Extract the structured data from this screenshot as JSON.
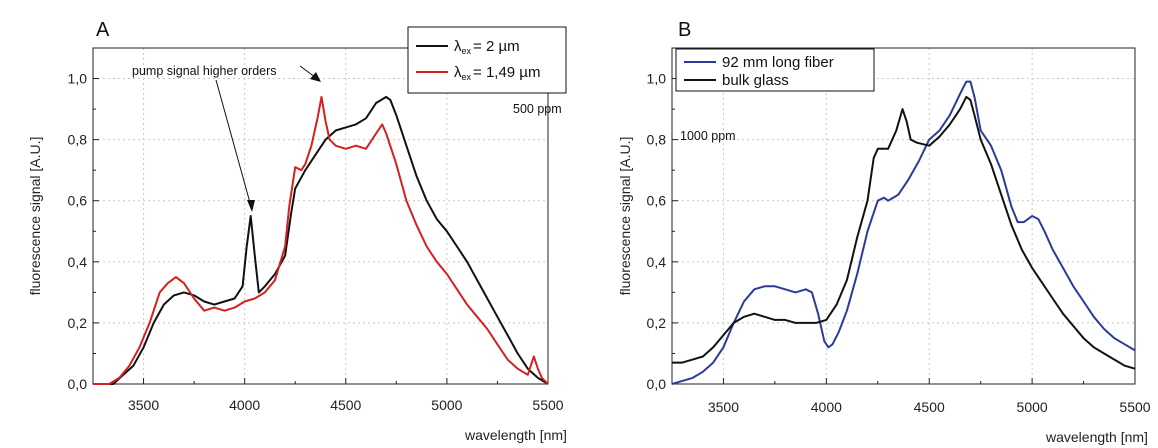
{
  "chart_data": [
    {
      "panel": "A",
      "type": "line",
      "xlabel": "wavelength [nm]",
      "ylabel": "fluorescence signal [A.U.]",
      "xlim": [
        3250,
        5500
      ],
      "ylim": [
        0,
        1.1
      ],
      "xticks": [
        3500,
        4000,
        4500,
        5000,
        5500
      ],
      "xtick_labels": [
        "3500",
        "4000",
        "4500",
        "5000",
        "5500"
      ],
      "yticks": [
        0,
        0.2,
        0.4,
        0.6,
        0.8,
        1.0
      ],
      "ytick_labels": [
        "0,0",
        "0,2",
        "0,4",
        "0,6",
        "0,8",
        "1,0"
      ],
      "grid": true,
      "legend_position": "top-right",
      "legend": [
        {
          "base": "λ",
          "sub": "ex",
          "rest": "= 2 µm",
          "color": "#111111"
        },
        {
          "base": "λ",
          "sub": "ex",
          "rest": "= 1,49 µm",
          "color": "#d42020"
        }
      ],
      "annotations": {
        "arrow_text": "pump signal higher orders",
        "concentration": "500 ppm"
      },
      "series": [
        {
          "color": "#111111",
          "x": [
            3250,
            3350,
            3400,
            3450,
            3500,
            3550,
            3600,
            3650,
            3700,
            3750,
            3800,
            3850,
            3900,
            3950,
            3990,
            4010,
            4030,
            4050,
            4070,
            4100,
            4150,
            4200,
            4230,
            4250,
            4300,
            4350,
            4400,
            4450,
            4500,
            4550,
            4600,
            4650,
            4700,
            4720,
            4750,
            4800,
            4850,
            4900,
            4950,
            5000,
            5050,
            5100,
            5150,
            5200,
            5250,
            5300,
            5350,
            5400,
            5450,
            5500
          ],
          "y": [
            0.0,
            0.0,
            0.03,
            0.06,
            0.12,
            0.2,
            0.26,
            0.29,
            0.3,
            0.29,
            0.27,
            0.26,
            0.27,
            0.28,
            0.32,
            0.45,
            0.55,
            0.42,
            0.3,
            0.32,
            0.36,
            0.42,
            0.56,
            0.64,
            0.7,
            0.75,
            0.8,
            0.83,
            0.84,
            0.85,
            0.87,
            0.92,
            0.94,
            0.93,
            0.88,
            0.78,
            0.68,
            0.6,
            0.54,
            0.5,
            0.45,
            0.4,
            0.34,
            0.28,
            0.22,
            0.16,
            0.1,
            0.05,
            0.02,
            0.0
          ]
        },
        {
          "color": "#d42020",
          "x": [
            3250,
            3330,
            3380,
            3430,
            3480,
            3530,
            3580,
            3620,
            3660,
            3700,
            3750,
            3800,
            3850,
            3900,
            3950,
            4000,
            4050,
            4100,
            4150,
            4200,
            4220,
            4250,
            4280,
            4300,
            4330,
            4360,
            4380,
            4400,
            4420,
            4450,
            4500,
            4550,
            4600,
            4650,
            4680,
            4700,
            4750,
            4800,
            4850,
            4900,
            4950,
            5000,
            5050,
            5100,
            5150,
            5200,
            5250,
            5300,
            5350,
            5400,
            5430,
            5450,
            5470,
            5500
          ],
          "y": [
            0.0,
            0.0,
            0.02,
            0.06,
            0.12,
            0.2,
            0.3,
            0.33,
            0.35,
            0.33,
            0.28,
            0.24,
            0.25,
            0.24,
            0.25,
            0.27,
            0.28,
            0.3,
            0.34,
            0.45,
            0.58,
            0.71,
            0.7,
            0.72,
            0.78,
            0.87,
            0.94,
            0.86,
            0.8,
            0.78,
            0.77,
            0.78,
            0.77,
            0.82,
            0.85,
            0.82,
            0.72,
            0.6,
            0.52,
            0.45,
            0.4,
            0.36,
            0.31,
            0.26,
            0.22,
            0.18,
            0.13,
            0.08,
            0.05,
            0.03,
            0.09,
            0.05,
            0.02,
            0.0
          ]
        }
      ]
    },
    {
      "panel": "B",
      "type": "line",
      "xlabel": "wavelength [nm]",
      "ylabel": "fluorescence signal [A.U.]",
      "xlim": [
        3250,
        5500
      ],
      "ylim": [
        0,
        1.1
      ],
      "xticks": [
        3500,
        4000,
        4500,
        5000,
        5500
      ],
      "xtick_labels": [
        "3500",
        "4000",
        "4500",
        "5000",
        "5500"
      ],
      "yticks": [
        0,
        0.2,
        0.4,
        0.6,
        0.8,
        1.0
      ],
      "ytick_labels": [
        "0,0",
        "0,2",
        "0,4",
        "0,6",
        "0,8",
        "1,0"
      ],
      "grid": true,
      "legend_position": "top-left",
      "legend": [
        {
          "label": "92 mm long fiber",
          "color": "#2c3a9a"
        },
        {
          "label": "bulk glass",
          "color": "#111111"
        }
      ],
      "annotations": {
        "concentration": "1000 ppm"
      },
      "series": [
        {
          "color": "#2c3a9a",
          "x": [
            3250,
            3300,
            3350,
            3400,
            3450,
            3500,
            3550,
            3600,
            3650,
            3700,
            3750,
            3800,
            3850,
            3900,
            3930,
            3960,
            3990,
            4010,
            4030,
            4060,
            4100,
            4150,
            4200,
            4250,
            4280,
            4300,
            4350,
            4400,
            4450,
            4500,
            4550,
            4600,
            4650,
            4680,
            4700,
            4720,
            4750,
            4800,
            4850,
            4900,
            4930,
            4960,
            5000,
            5030,
            5060,
            5100,
            5150,
            5200,
            5250,
            5300,
            5350,
            5400,
            5450,
            5500
          ],
          "y": [
            0.0,
            0.01,
            0.02,
            0.04,
            0.07,
            0.12,
            0.2,
            0.27,
            0.31,
            0.32,
            0.32,
            0.31,
            0.3,
            0.31,
            0.3,
            0.23,
            0.14,
            0.12,
            0.13,
            0.17,
            0.24,
            0.36,
            0.5,
            0.6,
            0.61,
            0.6,
            0.62,
            0.67,
            0.73,
            0.8,
            0.83,
            0.88,
            0.95,
            0.99,
            0.99,
            0.94,
            0.83,
            0.78,
            0.7,
            0.58,
            0.53,
            0.53,
            0.55,
            0.54,
            0.5,
            0.44,
            0.38,
            0.32,
            0.27,
            0.22,
            0.18,
            0.15,
            0.13,
            0.11
          ]
        },
        {
          "color": "#111111",
          "x": [
            3250,
            3300,
            3350,
            3400,
            3450,
            3500,
            3550,
            3600,
            3650,
            3700,
            3750,
            3800,
            3850,
            3900,
            3950,
            4000,
            4050,
            4100,
            4150,
            4200,
            4230,
            4250,
            4300,
            4340,
            4370,
            4390,
            4410,
            4440,
            4500,
            4550,
            4600,
            4650,
            4680,
            4700,
            4720,
            4750,
            4800,
            4850,
            4900,
            4950,
            5000,
            5050,
            5100,
            5150,
            5200,
            5250,
            5300,
            5350,
            5400,
            5450,
            5500
          ],
          "y": [
            0.07,
            0.07,
            0.08,
            0.09,
            0.12,
            0.16,
            0.2,
            0.22,
            0.23,
            0.22,
            0.21,
            0.21,
            0.2,
            0.2,
            0.2,
            0.21,
            0.26,
            0.34,
            0.48,
            0.6,
            0.74,
            0.77,
            0.77,
            0.83,
            0.9,
            0.86,
            0.8,
            0.79,
            0.78,
            0.81,
            0.85,
            0.9,
            0.94,
            0.93,
            0.88,
            0.8,
            0.72,
            0.62,
            0.52,
            0.44,
            0.38,
            0.33,
            0.28,
            0.23,
            0.19,
            0.15,
            0.12,
            0.1,
            0.08,
            0.06,
            0.05
          ]
        }
      ]
    }
  ]
}
